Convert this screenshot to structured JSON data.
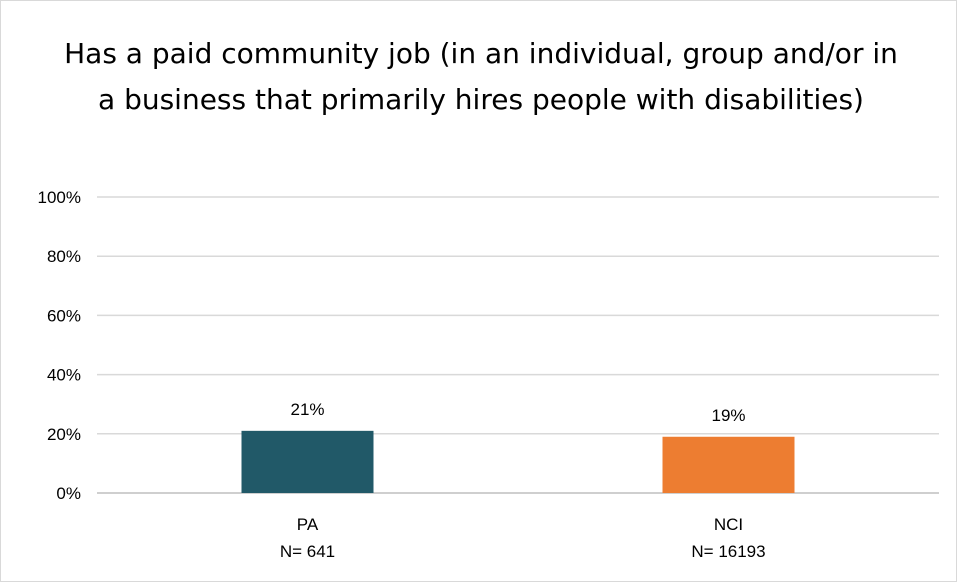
{
  "chart_data": {
    "type": "bar",
    "title": "Has a paid community job (in an individual, group and/or in a business that primarily hires people with disabilities)",
    "categories": [
      "PA",
      "NCI"
    ],
    "category_n": [
      "N= 641",
      "N= 16193"
    ],
    "values": [
      21,
      19
    ],
    "data_labels": [
      "21%",
      "19%"
    ],
    "colors": [
      "#215968",
      "#ed7d31"
    ],
    "ylim": [
      0,
      100
    ],
    "yticks": [
      0,
      20,
      40,
      60,
      80,
      100
    ],
    "ytick_labels": [
      "0%",
      "20%",
      "40%",
      "60%",
      "80%",
      "100%"
    ],
    "grid": true,
    "grid_color": "#d9d9d9",
    "xlabel": "",
    "ylabel": ""
  }
}
